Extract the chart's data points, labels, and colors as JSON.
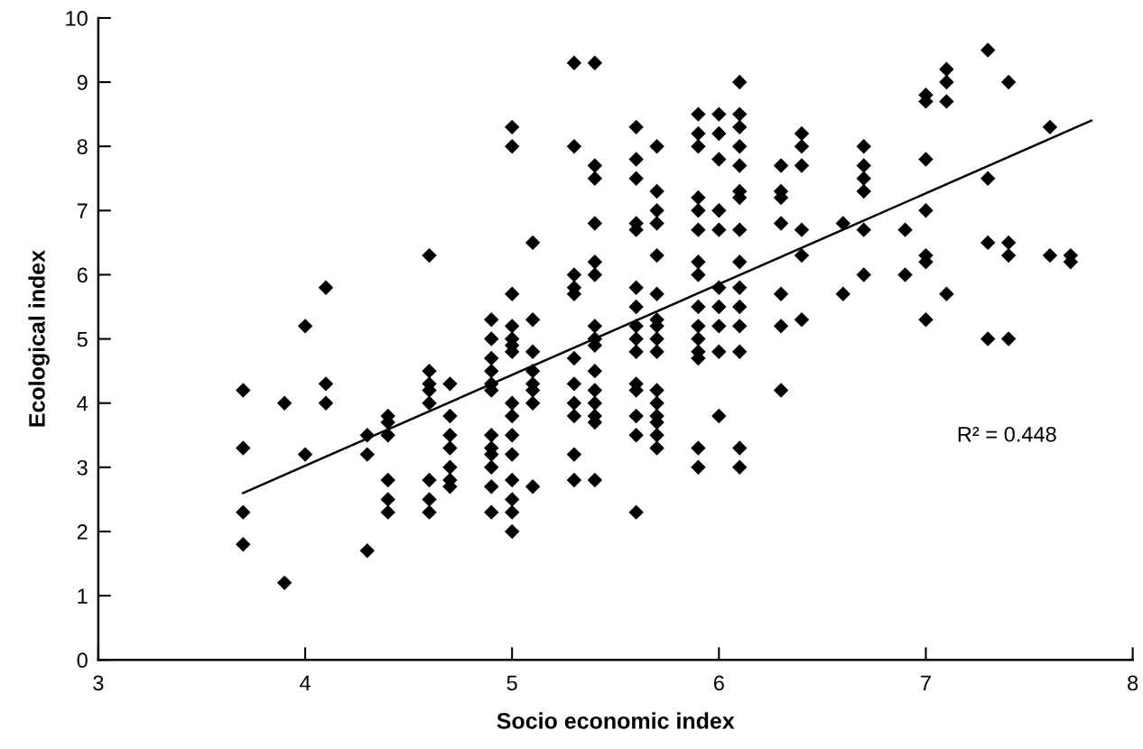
{
  "chart_data": {
    "type": "scatter",
    "xlabel": "Socio economic index",
    "ylabel": "Ecological index",
    "xlim": [
      3,
      8
    ],
    "xticks": [
      3,
      4,
      5,
      6,
      7,
      8
    ],
    "ylim": [
      0,
      10
    ],
    "yticks": [
      0,
      1,
      2,
      3,
      4,
      5,
      6,
      7,
      8,
      9,
      10
    ],
    "grid": false,
    "legend": false,
    "marker": "diamond",
    "annotations": [
      "R² = 0.448"
    ],
    "series": [
      {
        "color": "#000000",
        "x": [
          3.7,
          3.7,
          3.7,
          3.7,
          3.9,
          3.9,
          4.0,
          4.0,
          4.1,
          4.1,
          4.1,
          4.3,
          4.3,
          4.3,
          4.4,
          4.4,
          4.4,
          4.4,
          4.4,
          4.4,
          4.6,
          4.6,
          4.6,
          4.6,
          4.6,
          4.6,
          4.6,
          4.6,
          4.7,
          4.7,
          4.7,
          4.7,
          4.7,
          4.7,
          4.7,
          4.9,
          4.9,
          4.9,
          4.9,
          4.9,
          4.9,
          4.9,
          4.9,
          4.9,
          4.9,
          4.9,
          4.9,
          5.0,
          5.0,
          5.0,
          5.0,
          5.0,
          5.0,
          5.0,
          5.0,
          5.0,
          5.0,
          5.0,
          5.0,
          5.0,
          5.0,
          5.0,
          5.1,
          5.1,
          5.1,
          5.1,
          5.1,
          5.1,
          5.1,
          5.1,
          5.3,
          5.3,
          5.3,
          5.3,
          5.3,
          5.3,
          5.3,
          5.3,
          5.3,
          5.3,
          5.3,
          5.4,
          5.4,
          5.4,
          5.4,
          5.4,
          5.4,
          5.4,
          5.4,
          5.4,
          5.4,
          5.4,
          5.4,
          5.4,
          5.4,
          5.4,
          5.6,
          5.6,
          5.6,
          5.6,
          5.6,
          5.6,
          5.6,
          5.6,
          5.6,
          5.6,
          5.6,
          5.6,
          5.6,
          5.6,
          5.6,
          5.7,
          5.7,
          5.7,
          5.7,
          5.7,
          5.7,
          5.7,
          5.7,
          5.7,
          5.7,
          5.7,
          5.7,
          5.7,
          5.7,
          5.7,
          5.7,
          5.9,
          5.9,
          5.9,
          5.9,
          5.9,
          5.9,
          5.9,
          5.9,
          5.9,
          5.9,
          5.9,
          5.9,
          5.9,
          5.9,
          5.9,
          6.0,
          6.0,
          6.0,
          6.0,
          6.0,
          6.0,
          6.0,
          6.0,
          6.0,
          6.0,
          6.1,
          6.1,
          6.1,
          6.1,
          6.1,
          6.1,
          6.1,
          6.1,
          6.1,
          6.1,
          6.1,
          6.1,
          6.1,
          6.1,
          6.1,
          6.3,
          6.3,
          6.3,
          6.3,
          6.3,
          6.3,
          6.3,
          6.4,
          6.4,
          6.4,
          6.4,
          6.4,
          6.4,
          6.6,
          6.6,
          6.7,
          6.7,
          6.7,
          6.7,
          6.7,
          6.7,
          6.9,
          6.9,
          7.0,
          7.0,
          7.0,
          7.0,
          7.0,
          7.0,
          7.0,
          7.1,
          7.1,
          7.1,
          7.1,
          7.3,
          7.3,
          7.3,
          7.3,
          7.4,
          7.4,
          7.4,
          7.4,
          7.6,
          7.6,
          7.7,
          7.7
        ],
        "values": [
          4.2,
          3.3,
          2.3,
          1.8,
          4.0,
          1.2,
          5.2,
          3.2,
          5.8,
          4.3,
          4.0,
          3.5,
          3.2,
          1.7,
          3.8,
          3.7,
          3.5,
          2.8,
          2.5,
          2.3,
          6.3,
          4.5,
          4.3,
          4.2,
          4.0,
          2.8,
          2.5,
          2.3,
          4.3,
          3.8,
          3.5,
          3.3,
          3.0,
          2.8,
          2.7,
          5.3,
          5.0,
          4.7,
          4.5,
          4.3,
          4.2,
          3.5,
          3.3,
          3.2,
          3.0,
          2.7,
          2.3,
          8.3,
          8.0,
          5.7,
          5.2,
          5.0,
          4.9,
          4.8,
          4.0,
          3.8,
          3.5,
          3.2,
          2.8,
          2.5,
          2.3,
          2.0,
          6.5,
          5.3,
          4.8,
          4.5,
          4.3,
          4.2,
          4.0,
          2.7,
          9.3,
          8.0,
          6.0,
          5.8,
          5.7,
          4.7,
          4.3,
          4.0,
          3.8,
          3.2,
          2.8,
          9.3,
          7.7,
          7.5,
          6.8,
          6.2,
          6.0,
          5.2,
          5.0,
          4.9,
          4.5,
          4.2,
          4.0,
          3.8,
          3.7,
          2.8,
          8.3,
          7.8,
          7.5,
          6.8,
          6.7,
          5.8,
          5.5,
          5.2,
          5.0,
          4.8,
          4.3,
          4.2,
          3.8,
          3.5,
          2.3,
          8.0,
          7.3,
          7.0,
          6.8,
          6.3,
          5.7,
          5.3,
          5.2,
          5.0,
          4.8,
          4.2,
          4.0,
          3.8,
          3.7,
          3.5,
          3.3,
          8.5,
          8.2,
          8.0,
          7.2,
          7.0,
          6.7,
          6.2,
          6.0,
          5.5,
          5.2,
          5.0,
          4.8,
          4.7,
          3.3,
          3.0,
          8.5,
          8.2,
          7.8,
          7.0,
          6.7,
          5.8,
          5.5,
          5.2,
          4.8,
          3.8,
          9.0,
          8.5,
          8.3,
          8.0,
          7.7,
          7.3,
          7.2,
          6.7,
          6.2,
          5.8,
          5.5,
          5.2,
          4.8,
          3.3,
          3.0,
          7.7,
          7.3,
          7.2,
          6.8,
          5.7,
          5.2,
          4.2,
          8.2,
          8.0,
          7.7,
          6.7,
          6.3,
          5.3,
          6.8,
          5.7,
          8.0,
          7.7,
          7.5,
          7.3,
          6.7,
          6.0,
          6.7,
          6.0,
          8.8,
          8.7,
          7.8,
          7.0,
          6.3,
          6.2,
          5.3,
          9.2,
          9.0,
          8.7,
          5.7,
          9.5,
          7.5,
          6.5,
          5.0,
          9.0,
          6.5,
          6.3,
          5.0,
          8.3,
          6.3,
          6.3,
          6.2
        ]
      },
      {
        "type": "line",
        "color": "#000000",
        "x": [
          3.7,
          7.8
        ],
        "values": [
          2.6,
          8.4
        ],
        "marker": "none",
        "line_style": "solid"
      }
    ]
  }
}
